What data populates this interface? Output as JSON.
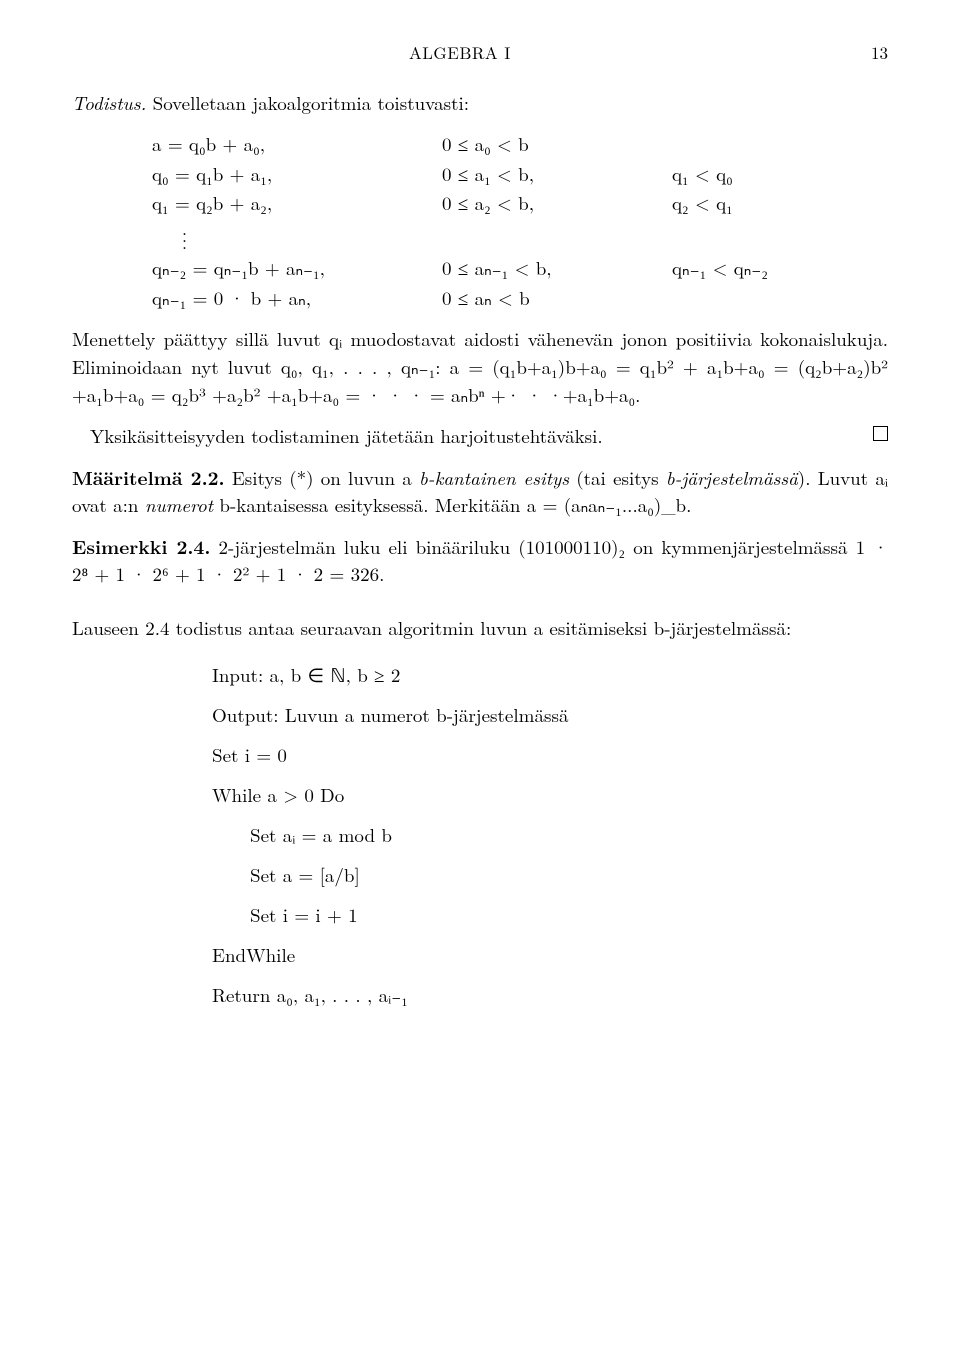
{
  "header": {
    "title": "ALGEBRA I",
    "page": "13"
  },
  "proof_label": "Todistus.",
  "intro_sentence": " Sovelletaan jakoalgoritmia toistuvasti:",
  "eq": {
    "r1": {
      "a": "a = q₀b + a₀,",
      "b": "0 ≤ a₀ < b",
      "c": ""
    },
    "r2": {
      "a": "q₀ = q₁b + a₁,",
      "b": "0 ≤ a₁ < b,",
      "c": "q₁ < q₀"
    },
    "r3": {
      "a": "q₁ = q₂b + a₂,",
      "b": "0 ≤ a₂ < b,",
      "c": "q₂ < q₁"
    },
    "r4": {
      "a": "qₙ₋₂ = qₙ₋₁b + aₙ₋₁,",
      "b": "0 ≤ aₙ₋₁ < b,",
      "c": "qₙ₋₁ < qₙ₋₂"
    },
    "r5": {
      "a": "qₙ₋₁ = 0 · b + aₙ,",
      "b": "0 ≤ aₙ < b",
      "c": ""
    }
  },
  "para1": "Menettely päättyy sillä luvut qᵢ muodostavat aidosti vähenevän jonon positiivia kokonaislukuja. Eliminoidaan nyt luvut q₀, q₁, . . . , qₙ₋₁: a = (q₁b+a₁)b+a₀ = q₁b² + a₁b+a₀ = (q₂b+a₂)b² +a₁b+a₀ = q₂b³ +a₂b² +a₁b+a₀ = · · · = aₙbⁿ +· · ·+a₁b+a₀.",
  "para1b": "Yksikäsitteisyyden todistaminen jätetään harjoitustehtäväksi.",
  "def": {
    "label": "Määritelmä 2.2.",
    "body1": " Esitys (*) on luvun a ",
    "term1": "b-kantainen esitys",
    "body2": " (tai esitys ",
    "term2": "b-järjestelmässä",
    "body3": "). Luvut aᵢ ovat a:n ",
    "term3": "numerot",
    "body4": " b-kantaisessa esityksessä. Merkitään a = (aₙaₙ₋₁...a₀)_b."
  },
  "ex": {
    "label": "Esimerkki 2.4.",
    "body": " 2-järjestelmän luku eli binääriluku (101000110)₂ on kymmenjärjestelmässä 1 · 2⁸ + 1 · 2⁶ + 1 · 2² + 1 · 2 = 326."
  },
  "lemma_line": "Lauseen 2.4 todistus antaa seuraavan algoritmin luvun a esitämiseksi b-järjestelmässä:",
  "algo": {
    "l1": "Input: a, b ∈ ℕ,  b ≥ 2",
    "l2": "Output: Luvun a numerot b-järjestelmässä",
    "l3": "Set i = 0",
    "l4": "While a > 0 Do",
    "l5": "Set aᵢ = a mod b",
    "l6": "Set a = [a/b]",
    "l7": "Set i = i + 1",
    "l8": "EndWhile",
    "l9": "Return a₀, a₁, . . . , aᵢ₋₁"
  }
}
